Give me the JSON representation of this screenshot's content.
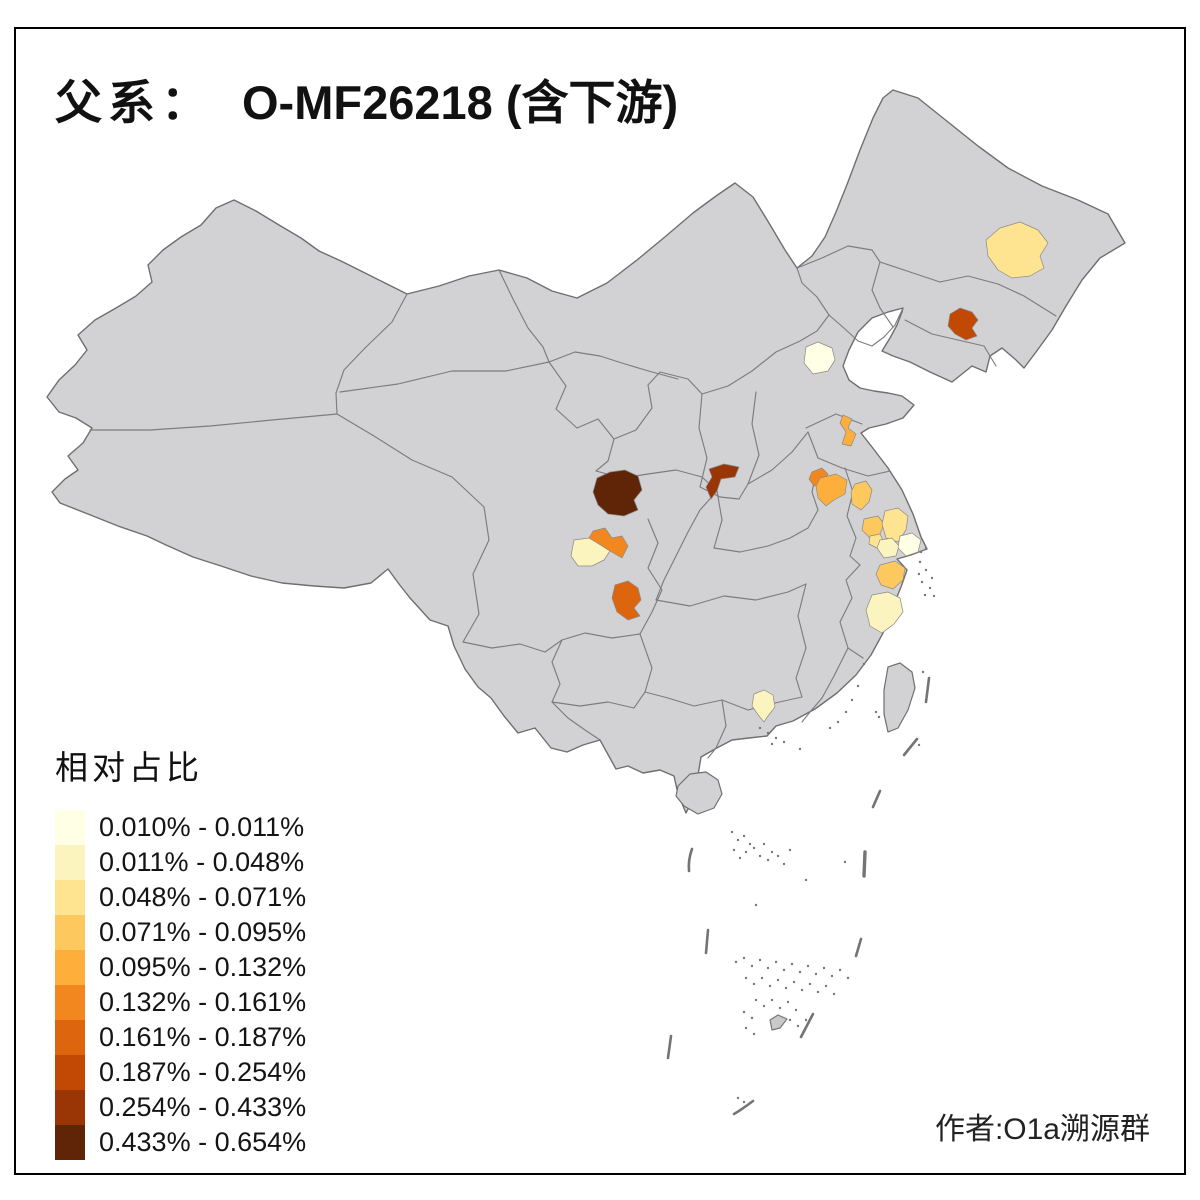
{
  "title": {
    "prefix": "父系：",
    "main": "O-MF26218 (含下游)"
  },
  "legend": {
    "title": "相对占比",
    "items": [
      {
        "label": "0.010% - 0.011%",
        "color": "#FFFFE5"
      },
      {
        "label": "0.011% - 0.048%",
        "color": "#FCF4BE"
      },
      {
        "label": "0.048% - 0.071%",
        "color": "#FEE391"
      },
      {
        "label": "0.071% - 0.095%",
        "color": "#FDC95F"
      },
      {
        "label": "0.095% - 0.132%",
        "color": "#FDAE3B"
      },
      {
        "label": "0.132% - 0.161%",
        "color": "#F2871F"
      },
      {
        "label": "0.161% - 0.187%",
        "color": "#DD650D"
      },
      {
        "label": "0.187% - 0.254%",
        "color": "#C24903"
      },
      {
        "label": "0.254% - 0.433%",
        "color": "#9A3505"
      },
      {
        "label": "0.433% - 0.654%",
        "color": "#5F2506"
      }
    ]
  },
  "author": "作者:O1a溯源群",
  "map": {
    "land_color": "#D2D2D5",
    "island_color": "#CFCFD2",
    "border_color": "#6F6F6F",
    "inner_border_color": "#7D7D7D",
    "sea_color": "#FFFFFF",
    "regions": [
      {
        "id": "suihua",
        "class": 3
      },
      {
        "id": "jilin-city",
        "class": 8
      },
      {
        "id": "beijing",
        "class": 1
      },
      {
        "id": "jinan",
        "class": 5
      },
      {
        "id": "yuncheng",
        "class": 9
      },
      {
        "id": "longnan",
        "class": 10
      },
      {
        "id": "mianyang",
        "class": 6
      },
      {
        "id": "chengdu",
        "class": 2
      },
      {
        "id": "zigong",
        "class": 7
      },
      {
        "id": "huaibei",
        "class": 6
      },
      {
        "id": "xuzhou",
        "class": 5
      },
      {
        "id": "suqian",
        "class": 4
      },
      {
        "id": "huaian",
        "class": 4
      },
      {
        "id": "yangzhou",
        "class": 3
      },
      {
        "id": "yancheng",
        "class": 3
      },
      {
        "id": "taizhou-js",
        "class": 2
      },
      {
        "id": "nantong",
        "class": 1
      },
      {
        "id": "shaoxing",
        "class": 4
      },
      {
        "id": "taizhou-zj",
        "class": 2
      },
      {
        "id": "guangzhou",
        "class": 2
      }
    ]
  }
}
